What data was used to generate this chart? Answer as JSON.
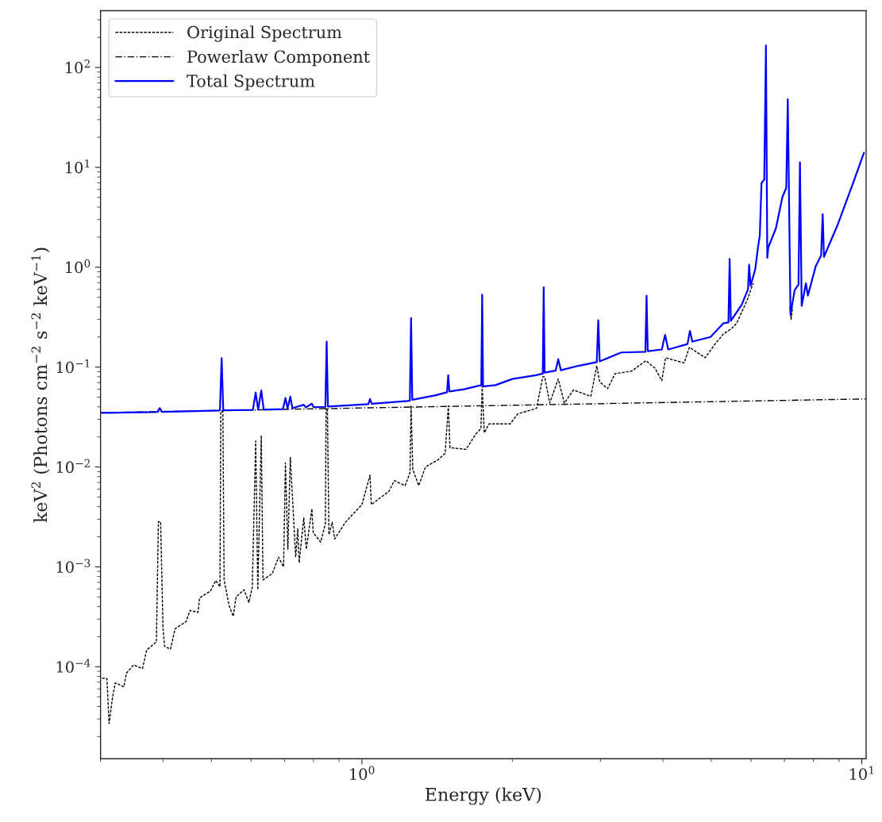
{
  "chart_data": {
    "type": "line",
    "xlabel": "Energy (keV)",
    "ylabel": "keV$^{2}$ (Photons cm$^{−2}$ s$^{−2}$ keV$^{−1}$)",
    "log": "xy",
    "xlim": [
      0.3,
      10.2
    ],
    "ylim": [
      1.2e-05,
      370
    ],
    "xticks": [
      {
        "value": 1,
        "label": "10$^{0}$"
      },
      {
        "value": 10,
        "label": "10$^{1}$"
      }
    ],
    "yticks": [
      {
        "value": 0.0001,
        "label": "10$^{−4}$"
      },
      {
        "value": 0.001,
        "label": "10$^{−3}$"
      },
      {
        "value": 0.01,
        "label": "10$^{−2}$"
      },
      {
        "value": 0.1,
        "label": "10$^{−1}$"
      },
      {
        "value": 1,
        "label": "10$^{0}$"
      },
      {
        "value": 10,
        "label": "10$^{1}$"
      },
      {
        "value": 100,
        "label": "10$^{2}$"
      }
    ],
    "grid": false,
    "legend": "top left",
    "marker": "none",
    "series": [
      {
        "name": "Original Spectrum",
        "color": "#000000",
        "line_style": "dashed",
        "x": [
          0.302,
          0.309,
          0.312,
          0.317,
          0.321,
          0.334,
          0.338,
          0.349,
          0.364,
          0.371,
          0.388,
          0.3916,
          0.3956,
          0.4,
          0.403,
          0.414,
          0.423,
          0.445,
          0.453,
          0.47,
          0.4735,
          0.4973,
          0.51,
          0.52,
          0.522,
          0.527,
          0.53,
          0.543,
          0.553,
          0.56,
          0.581,
          0.594,
          0.6035,
          0.613,
          0.619,
          0.629,
          0.634,
          0.662,
          0.681,
          0.697,
          0.703,
          0.711,
          0.719,
          0.737,
          0.744,
          0.749,
          0.765,
          0.774,
          0.794,
          0.799,
          0.827,
          0.845,
          0.848,
          0.853,
          0.859,
          0.872,
          0.882,
          0.927,
          1.0,
          1.038,
          1.044,
          1.132,
          1.161,
          1.22,
          1.248,
          1.254,
          1.264,
          1.299,
          1.34,
          1.417,
          1.467,
          1.489,
          1.5,
          1.616,
          1.688,
          1.73,
          1.74,
          1.757,
          1.796,
          1.98,
          2.05,
          2.235,
          2.3,
          2.32,
          2.375,
          2.47,
          2.54,
          2.65,
          2.87,
          2.95,
          2.99,
          3.1,
          3.21,
          3.46,
          3.7,
          3.86,
          3.98,
          4.05,
          4.41,
          4.52,
          4.86,
          5.1,
          5.29,
          5.49,
          5.62,
          5.91,
          6.06,
          6.5,
          7.18,
          7.22,
          7.27
        ],
        "values": [
          7.7e-05,
          7.6e-05,
          2.7e-05,
          4.9e-05,
          6.9e-05,
          6.3e-05,
          8.6e-05,
          0.000104,
          9.6e-05,
          0.000147,
          0.000177,
          0.00283,
          0.00283,
          0.000243,
          0.00016,
          0.00015,
          0.00024,
          0.000284,
          0.000366,
          0.00035,
          0.00049,
          0.00057,
          0.00073,
          0.00063,
          0.036,
          0.036,
          0.00074,
          0.0004,
          0.00032,
          0.0005,
          0.00059,
          0.00044,
          0.00063,
          0.0182,
          0.00059,
          0.0207,
          0.00074,
          0.00086,
          0.00125,
          0.001,
          0.011,
          0.0015,
          0.0125,
          0.00125,
          0.0024,
          0.0011,
          0.0031,
          0.0015,
          0.0038,
          0.0022,
          0.00177,
          0.0027,
          0.0388,
          0.0388,
          0.0021,
          0.0028,
          0.0019,
          0.0028,
          0.0042,
          0.0083,
          0.0042,
          0.0057,
          0.0073,
          0.0065,
          0.0088,
          0.0413,
          0.0095,
          0.0065,
          0.01,
          0.0117,
          0.0137,
          0.041,
          0.0156,
          0.015,
          0.0213,
          0.0242,
          0.0645,
          0.022,
          0.027,
          0.027,
          0.034,
          0.0386,
          0.08,
          0.08,
          0.0436,
          0.076,
          0.0436,
          0.059,
          0.051,
          0.103,
          0.071,
          0.061,
          0.086,
          0.091,
          0.116,
          0.097,
          0.073,
          0.124,
          0.11,
          0.158,
          0.124,
          0.173,
          0.215,
          0.243,
          0.275,
          0.48,
          0.69,
          null,
          0.4,
          0.3,
          0.4
        ]
      },
      {
        "name": "Powerlaw Component",
        "color": "#000000",
        "line_style": "dashdot",
        "x": [
          0.3,
          10.2
        ],
        "values": [
          0.035,
          0.048
        ]
      },
      {
        "name": "Total Spectrum",
        "color": "#0000ff",
        "line_style": "solid",
        "x": [
          0.302,
          0.385,
          0.39,
          0.394,
          0.398,
          0.515,
          0.52,
          0.524,
          0.528,
          0.605,
          0.613,
          0.62,
          0.629,
          0.636,
          0.695,
          0.703,
          0.71,
          0.719,
          0.726,
          0.765,
          0.772,
          0.794,
          0.8,
          0.845,
          0.85,
          0.855,
          1.03,
          1.038,
          1.046,
          1.15,
          1.247,
          1.254,
          1.261,
          1.4,
          1.48,
          1.488,
          1.496,
          1.6,
          1.733,
          1.74,
          1.747,
          1.85,
          2.0,
          2.23,
          2.3,
          2.31,
          2.32,
          2.44,
          2.47,
          2.5,
          2.71,
          2.95,
          2.97,
          2.99,
          3.3,
          3.69,
          3.71,
          3.73,
          3.98,
          4.04,
          4.1,
          4.48,
          4.53,
          4.58,
          4.98,
          5.29,
          5.41,
          5.44,
          5.47,
          5.75,
          5.92,
          5.95,
          5.99,
          6.12,
          6.2,
          6.25,
          6.3,
          6.38,
          6.43,
          6.47,
          6.5,
          6.73,
          6.94,
          7.06,
          7.11,
          7.2,
          7.34,
          7.47,
          7.52,
          7.58,
          7.73,
          7.8,
          8.09,
          8.29,
          8.35,
          8.4,
          8.93,
          9.61,
          10.1
        ],
        "values": [
          0.0348,
          0.0355,
          0.0356,
          0.0388,
          0.0356,
          0.0368,
          0.0369,
          0.123,
          0.0369,
          0.0372,
          0.0555,
          0.0374,
          0.0584,
          0.0375,
          0.038,
          0.049,
          0.0385,
          0.0506,
          0.0387,
          0.042,
          0.0395,
          0.043,
          0.0398,
          0.04,
          0.18,
          0.0402,
          0.0425,
          0.048,
          0.043,
          0.0445,
          0.046,
          0.31,
          0.047,
          0.052,
          0.056,
          0.083,
          0.057,
          0.06,
          0.066,
          0.53,
          0.064,
          0.066,
          0.076,
          0.083,
          0.086,
          0.63,
          0.088,
          0.092,
          0.12,
          0.093,
          0.103,
          0.112,
          0.294,
          0.114,
          0.14,
          0.142,
          0.52,
          0.144,
          0.15,
          0.21,
          0.15,
          0.17,
          0.23,
          0.18,
          0.2,
          0.275,
          0.28,
          1.21,
          0.29,
          0.42,
          0.6,
          1.06,
          0.65,
          0.95,
          1.6,
          2.07,
          7.0,
          7.5,
          166,
          1.24,
          1.58,
          2.44,
          5.1,
          6.2,
          48,
          0.336,
          0.59,
          0.67,
          11.2,
          0.41,
          0.69,
          0.52,
          1.03,
          1.31,
          3.4,
          1.27,
          2.6,
          7.0,
          14
        ]
      }
    ]
  }
}
